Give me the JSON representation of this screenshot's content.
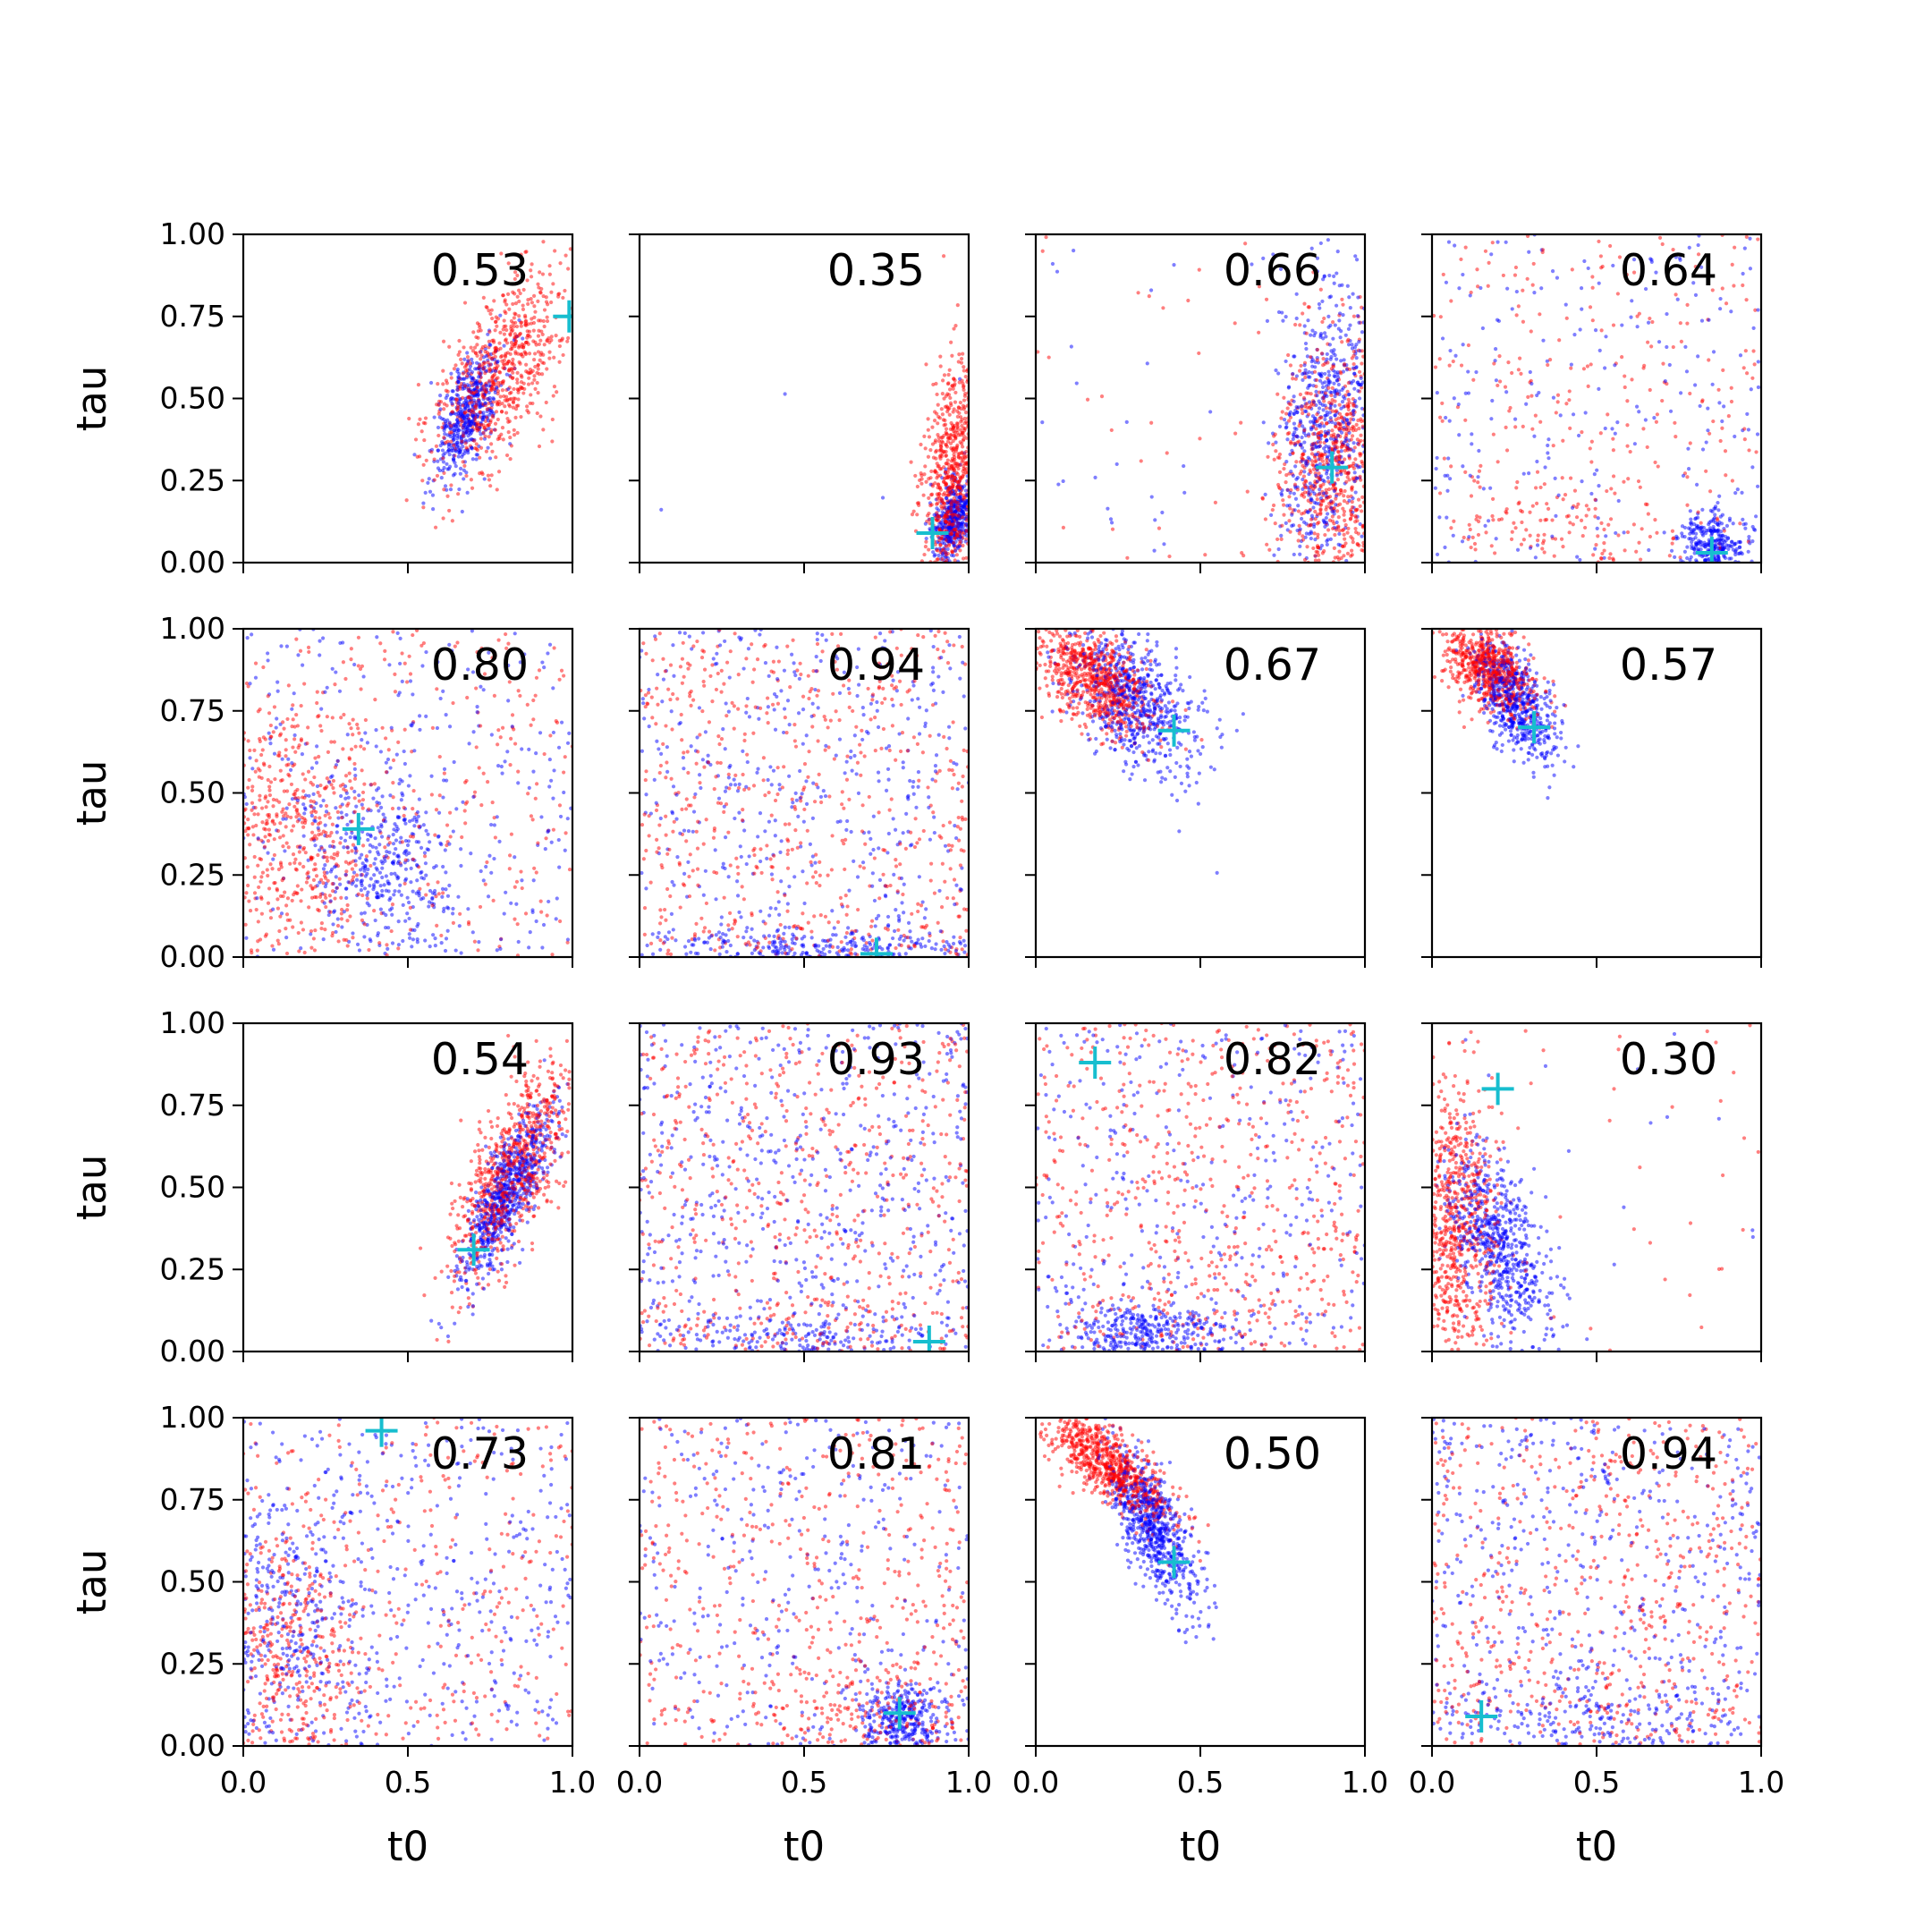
{
  "chart_data": {
    "type": "scatter",
    "layout": "4x4 grid of subplots",
    "xlabel": "t0",
    "ylabel": "tau",
    "xlim": [
      0,
      1
    ],
    "ylim": [
      0,
      1
    ],
    "xticks": [
      "0.0",
      "0.5",
      "1.0"
    ],
    "yticks": [
      "0.00",
      "0.25",
      "0.50",
      "0.75",
      "1.00"
    ],
    "series_colors": {
      "red": "#ff0000",
      "blue": "#0000ff",
      "truth_marker": "#17becf"
    },
    "panels": [
      {
        "label": "0.53",
        "truth": [
          0.99,
          0.75
        ],
        "red": {
          "cx": 0.78,
          "cy": 0.58,
          "sx": 0.1,
          "sy": 0.16,
          "rho": 0.6,
          "n": 700,
          "uni": 0.0
        },
        "blue": {
          "cx": 0.68,
          "cy": 0.44,
          "sx": 0.05,
          "sy": 0.1,
          "rho": 0.6,
          "n": 500,
          "uni": 0.0
        }
      },
      {
        "label": "0.35",
        "truth": [
          0.89,
          0.09
        ],
        "red": {
          "cx": 0.95,
          "cy": 0.25,
          "sx": 0.04,
          "sy": 0.18,
          "rho": 0.3,
          "n": 600,
          "uni": 0.0
        },
        "blue": {
          "cx": 0.95,
          "cy": 0.13,
          "sx": 0.03,
          "sy": 0.06,
          "rho": 0.3,
          "n": 400,
          "uni": 0.02
        }
      },
      {
        "label": "0.66",
        "truth": [
          0.9,
          0.29
        ],
        "red": {
          "cx": 0.92,
          "cy": 0.3,
          "sx": 0.1,
          "sy": 0.2,
          "rho": 0.1,
          "n": 650,
          "uni": 0.06
        },
        "blue": {
          "cx": 0.88,
          "cy": 0.42,
          "sx": 0.07,
          "sy": 0.22,
          "rho": 0.2,
          "n": 600,
          "uni": 0.06
        }
      },
      {
        "label": "0.64",
        "truth": [
          0.85,
          0.03
        ],
        "red": {
          "cx": 0.35,
          "cy": 0.1,
          "sx": 0.2,
          "sy": 0.08,
          "rho": 0.0,
          "n": 350,
          "uni": 0.7
        },
        "blue": {
          "cx": 0.85,
          "cy": 0.05,
          "sx": 0.05,
          "sy": 0.05,
          "rho": 0.0,
          "n": 500,
          "uni": 0.45
        }
      },
      {
        "label": "0.80",
        "truth": [
          0.35,
          0.39
        ],
        "red": {
          "cx": 0.15,
          "cy": 0.35,
          "sx": 0.15,
          "sy": 0.22,
          "rho": 0.0,
          "n": 700,
          "uni": 0.35
        },
        "blue": {
          "cx": 0.42,
          "cy": 0.3,
          "sx": 0.12,
          "sy": 0.15,
          "rho": -0.3,
          "n": 650,
          "uni": 0.4
        }
      },
      {
        "label": "0.94",
        "truth": [
          0.72,
          0.01
        ],
        "red": {
          "cx": 0.5,
          "cy": 0.05,
          "sx": 0.3,
          "sy": 0.04,
          "rho": 0.0,
          "n": 600,
          "uni": 0.9
        },
        "blue": {
          "cx": 0.5,
          "cy": 0.03,
          "sx": 0.3,
          "sy": 0.03,
          "rho": 0.0,
          "n": 650,
          "uni": 0.6
        }
      },
      {
        "label": "0.67",
        "truth": [
          0.42,
          0.69
        ],
        "red": {
          "cx": 0.18,
          "cy": 0.85,
          "sx": 0.09,
          "sy": 0.09,
          "rho": -0.5,
          "n": 700,
          "uni": 0.0
        },
        "blue": {
          "cx": 0.3,
          "cy": 0.78,
          "sx": 0.1,
          "sy": 0.11,
          "rho": -0.5,
          "n": 650,
          "uni": 0.0
        }
      },
      {
        "label": "0.57",
        "truth": [
          0.31,
          0.7
        ],
        "red": {
          "cx": 0.17,
          "cy": 0.88,
          "sx": 0.07,
          "sy": 0.07,
          "rho": -0.5,
          "n": 650,
          "uni": 0.0
        },
        "blue": {
          "cx": 0.25,
          "cy": 0.78,
          "sx": 0.06,
          "sy": 0.09,
          "rho": -0.6,
          "n": 600,
          "uni": 0.0
        }
      },
      {
        "label": "0.54",
        "truth": [
          0.7,
          0.31
        ],
        "red": {
          "cx": 0.82,
          "cy": 0.55,
          "sx": 0.09,
          "sy": 0.16,
          "rho": 0.7,
          "n": 750,
          "uni": 0.0
        },
        "blue": {
          "cx": 0.8,
          "cy": 0.47,
          "sx": 0.07,
          "sy": 0.13,
          "rho": 0.8,
          "n": 700,
          "uni": 0.0
        }
      },
      {
        "label": "0.93",
        "truth": [
          0.88,
          0.03
        ],
        "red": {
          "cx": 0.5,
          "cy": 0.05,
          "sx": 0.3,
          "sy": 0.04,
          "rho": 0.0,
          "n": 600,
          "uni": 0.9
        },
        "blue": {
          "cx": 0.5,
          "cy": 0.04,
          "sx": 0.3,
          "sy": 0.04,
          "rho": 0.0,
          "n": 700,
          "uni": 0.7
        }
      },
      {
        "label": "0.82",
        "truth": [
          0.18,
          0.88
        ],
        "red": {
          "cx": 0.5,
          "cy": 0.1,
          "sx": 0.3,
          "sy": 0.1,
          "rho": 0.0,
          "n": 600,
          "uni": 0.85
        },
        "blue": {
          "cx": 0.35,
          "cy": 0.05,
          "sx": 0.12,
          "sy": 0.05,
          "rho": 0.0,
          "n": 650,
          "uni": 0.5
        }
      },
      {
        "label": "0.30",
        "truth": [
          0.2,
          0.8
        ],
        "red": {
          "cx": 0.06,
          "cy": 0.4,
          "sx": 0.07,
          "sy": 0.2,
          "rho": 0.0,
          "n": 650,
          "uni": 0.05
        },
        "blue": {
          "cx": 0.2,
          "cy": 0.33,
          "sx": 0.08,
          "sy": 0.14,
          "rho": -0.5,
          "n": 650,
          "uni": 0.03
        }
      },
      {
        "label": "0.73",
        "truth": [
          0.42,
          0.96
        ],
        "red": {
          "cx": 0.12,
          "cy": 0.25,
          "sx": 0.12,
          "sy": 0.2,
          "rho": 0.0,
          "n": 600,
          "uni": 0.45
        },
        "blue": {
          "cx": 0.15,
          "cy": 0.35,
          "sx": 0.14,
          "sy": 0.25,
          "rho": 0.0,
          "n": 650,
          "uni": 0.55
        }
      },
      {
        "label": "0.81",
        "truth": [
          0.79,
          0.1
        ],
        "red": {
          "cx": 0.7,
          "cy": 0.12,
          "sx": 0.18,
          "sy": 0.1,
          "rho": 0.0,
          "n": 600,
          "uni": 0.7
        },
        "blue": {
          "cx": 0.8,
          "cy": 0.08,
          "sx": 0.06,
          "sy": 0.06,
          "rho": 0.0,
          "n": 650,
          "uni": 0.5
        }
      },
      {
        "label": "0.50",
        "truth": [
          0.42,
          0.56
        ],
        "red": {
          "cx": 0.22,
          "cy": 0.86,
          "sx": 0.1,
          "sy": 0.09,
          "rho": -0.8,
          "n": 750,
          "uni": 0.0
        },
        "blue": {
          "cx": 0.36,
          "cy": 0.66,
          "sx": 0.07,
          "sy": 0.12,
          "rho": -0.7,
          "n": 700,
          "uni": 0.0
        }
      },
      {
        "label": "0.94",
        "truth": [
          0.15,
          0.09
        ],
        "red": {
          "cx": 0.5,
          "cy": 0.1,
          "sx": 0.3,
          "sy": 0.1,
          "rho": 0.0,
          "n": 600,
          "uni": 0.9
        },
        "blue": {
          "cx": 0.5,
          "cy": 0.08,
          "sx": 0.3,
          "sy": 0.08,
          "rho": 0.0,
          "n": 650,
          "uni": 0.65
        }
      }
    ]
  }
}
